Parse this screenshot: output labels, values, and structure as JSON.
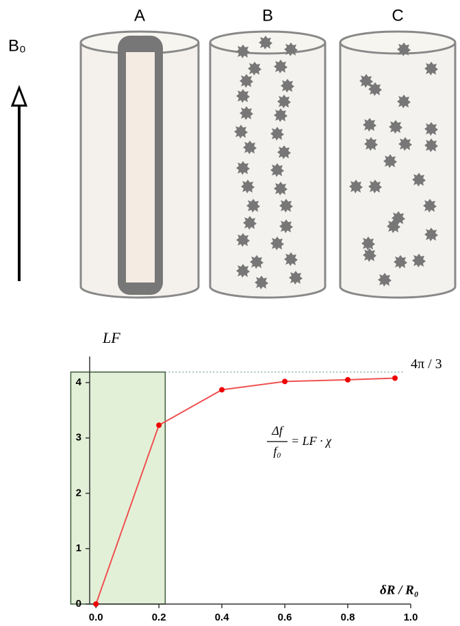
{
  "diagram": {
    "field_label": "B₀",
    "labels": [
      "A",
      "B",
      "C"
    ]
  },
  "chart_data": {
    "type": "line",
    "x_label": "δR / R₀",
    "y_label": "LF",
    "x": [
      0.0,
      0.2,
      0.4,
      0.6,
      0.8,
      0.95
    ],
    "series": [
      {
        "name": "LF",
        "color": "#f05050",
        "values": [
          0.0,
          3.23,
          3.87,
          4.02,
          4.05,
          4.08
        ]
      }
    ],
    "xlim": [
      -0.02,
      1.0
    ],
    "ylim": [
      0,
      4.47
    ],
    "xticks": [
      {
        "value": 0,
        "label": "0.0"
      },
      {
        "value": 0.2,
        "label": "0.2"
      },
      {
        "value": 0.4,
        "label": "0.4"
      },
      {
        "value": 0.6,
        "label": "0.6"
      },
      {
        "value": 0.8,
        "label": "0.8"
      },
      {
        "value": 1,
        "label": "1.0"
      }
    ],
    "yticks": [
      0,
      1,
      2,
      3,
      4
    ],
    "reference_line": {
      "value": 4.19,
      "label": "4π / 3"
    },
    "shaded_xrange": [
      -0.08,
      0.22
    ],
    "formula": {
      "numerator": "Δf",
      "denominator": "f₀",
      "rhs": "= LF · χ"
    }
  }
}
